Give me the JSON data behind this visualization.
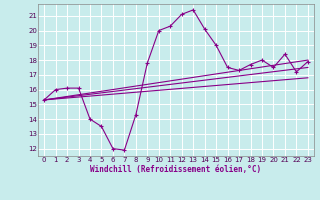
{
  "xlabel": "Windchill (Refroidissement éolien,°C)",
  "bg_color": "#c8ecec",
  "grid_color": "#a0c8c8",
  "line_color": "#880088",
  "ylim": [
    11.5,
    21.8
  ],
  "xlim": [
    -0.5,
    23.5
  ],
  "yticks": [
    12,
    13,
    14,
    15,
    16,
    17,
    18,
    19,
    20,
    21
  ],
  "xticks": [
    0,
    1,
    2,
    3,
    4,
    5,
    6,
    7,
    8,
    9,
    10,
    11,
    12,
    13,
    14,
    15,
    16,
    17,
    18,
    19,
    20,
    21,
    22,
    23
  ],
  "line1_x": [
    0,
    1,
    2,
    3,
    4,
    5,
    6,
    7,
    8,
    9,
    10,
    11,
    12,
    13,
    14,
    15,
    16,
    17,
    18,
    19,
    20,
    21,
    22,
    23
  ],
  "line1_y": [
    15.3,
    16.0,
    16.1,
    16.1,
    14.0,
    13.5,
    12.0,
    11.9,
    14.3,
    17.8,
    20.0,
    20.3,
    21.1,
    21.4,
    20.1,
    19.0,
    17.5,
    17.3,
    17.7,
    18.0,
    17.5,
    18.4,
    17.2,
    17.9
  ],
  "line2_x": [
    0,
    23
  ],
  "line2_y": [
    15.3,
    18.0
  ],
  "line3_x": [
    0,
    23
  ],
  "line3_y": [
    15.3,
    17.5
  ],
  "line4_x": [
    0,
    23
  ],
  "line4_y": [
    15.3,
    16.8
  ]
}
